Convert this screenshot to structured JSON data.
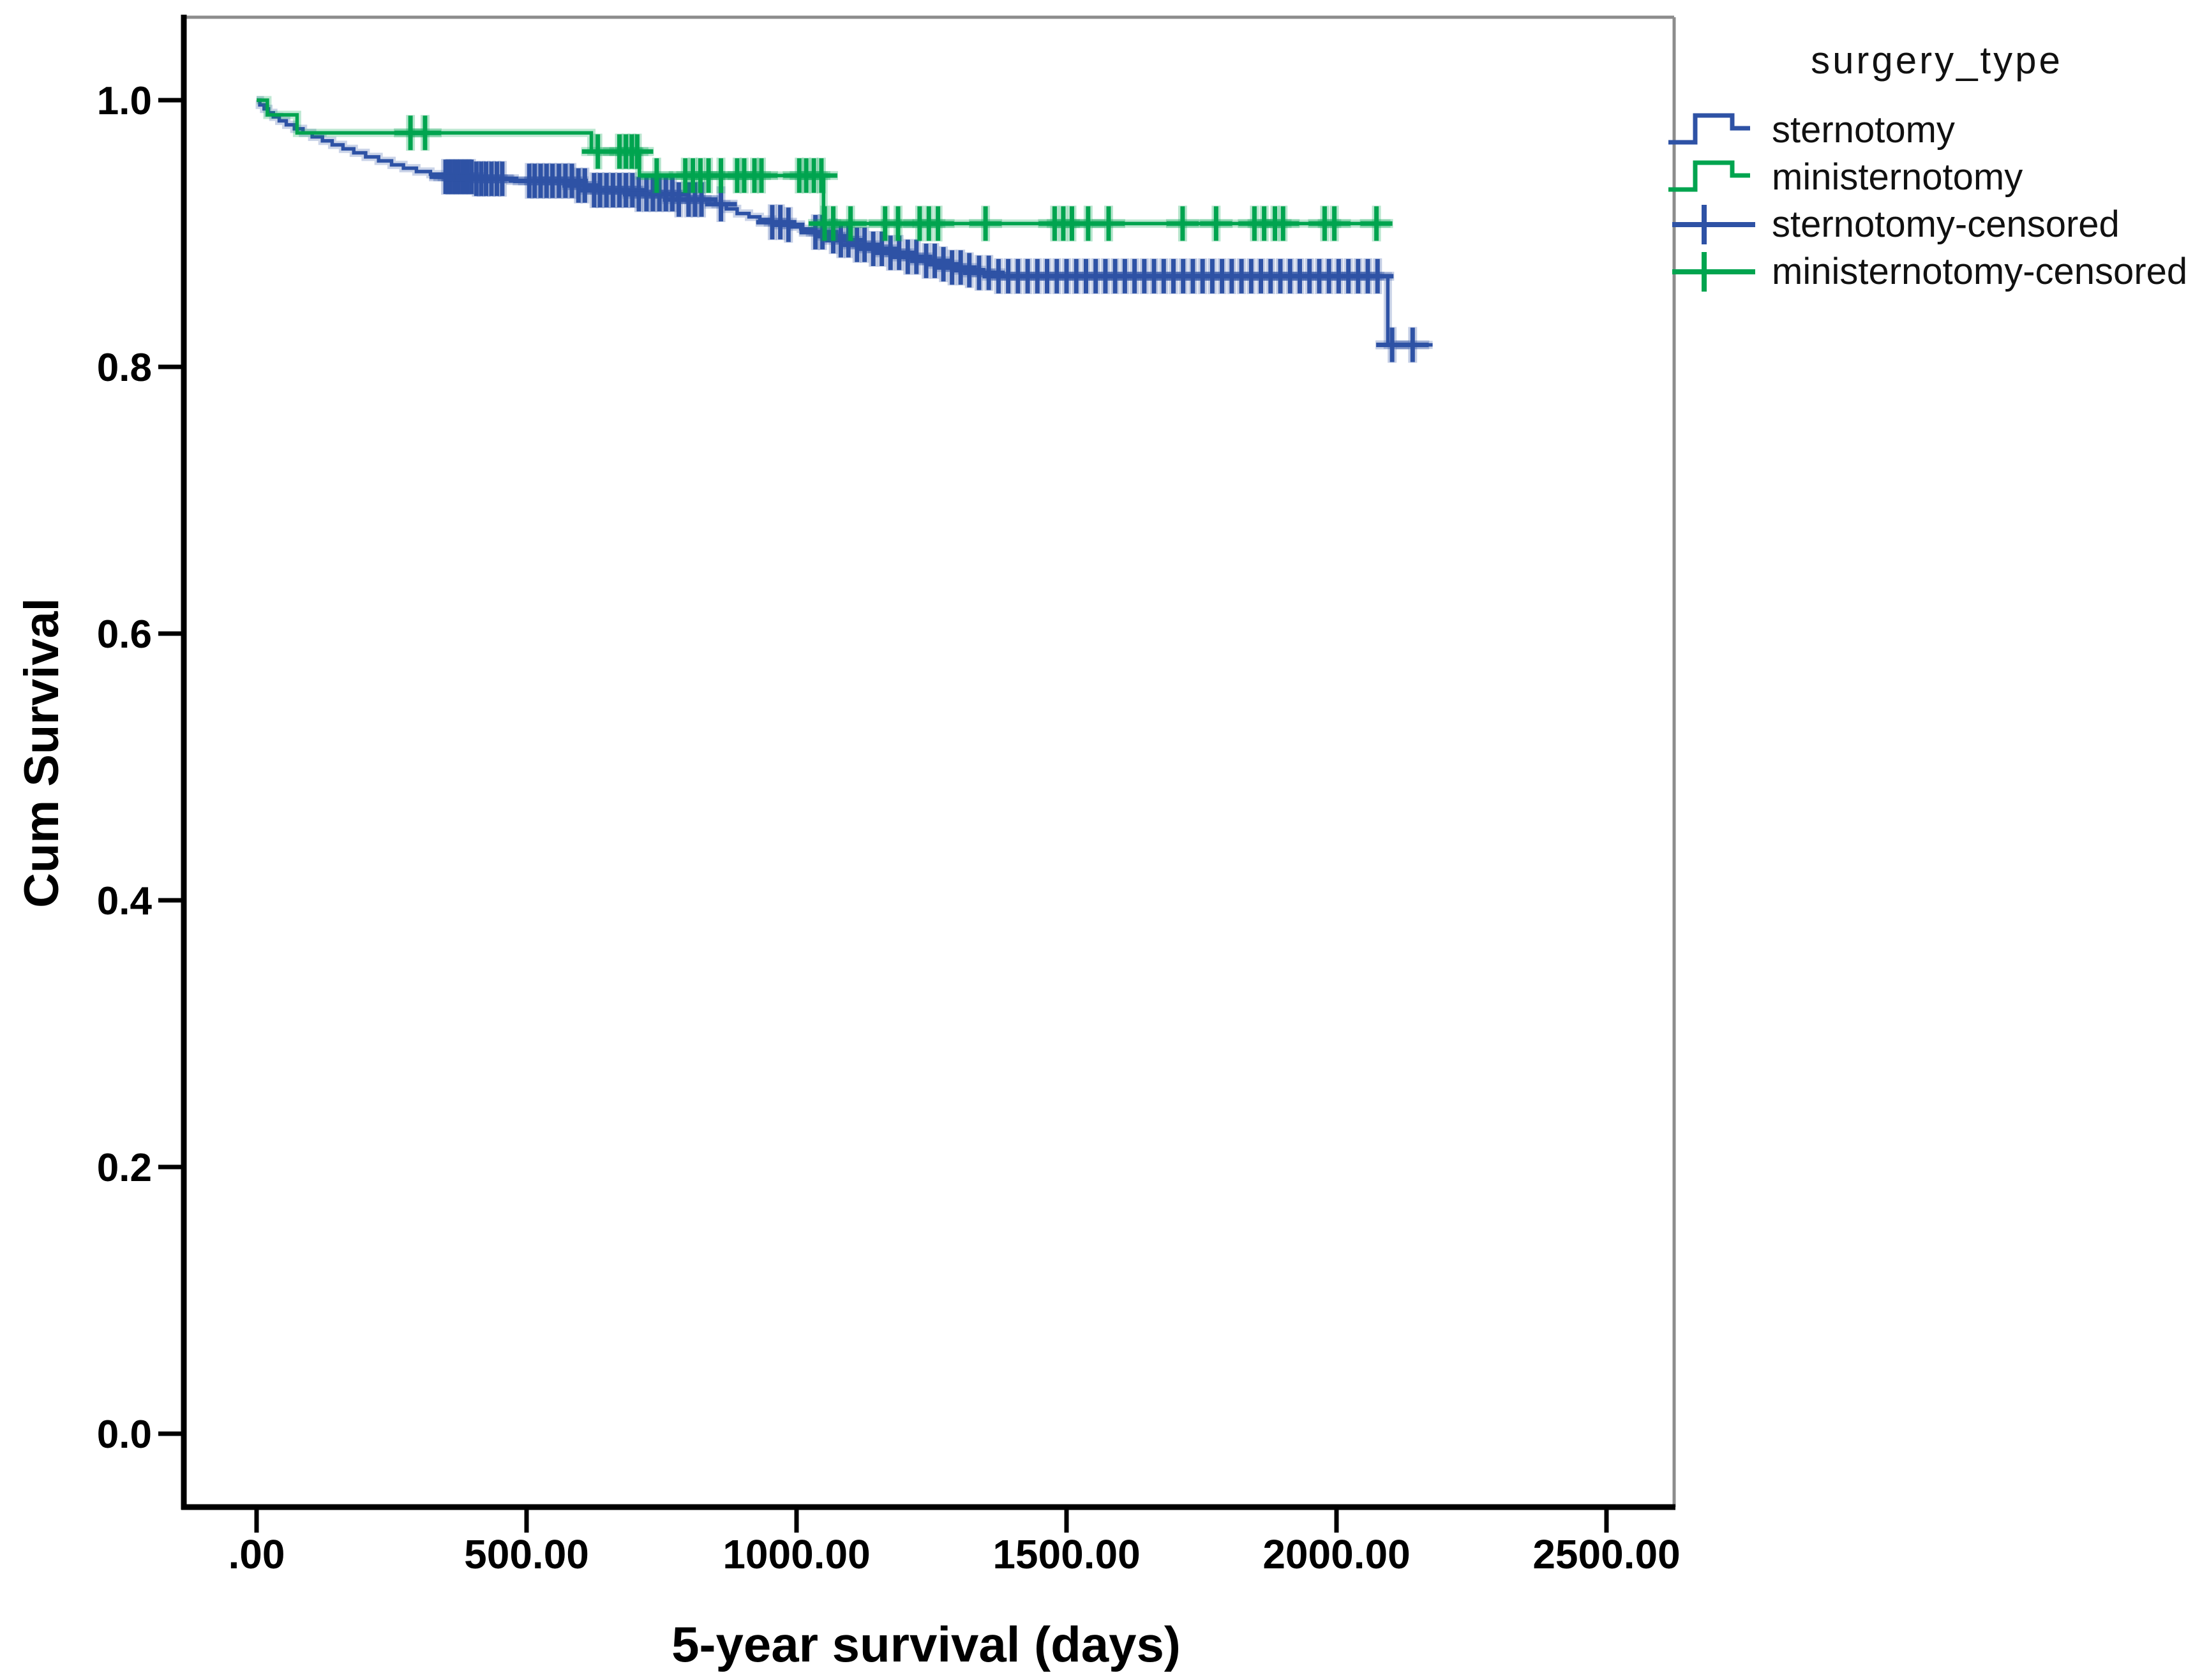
{
  "figure": {
    "y_axis_title": "Cum Survival",
    "x_axis_title": "5-year survival (days)",
    "background_color": "#ffffff",
    "axis_color": "#000000",
    "border_color": "#8c8c8c"
  },
  "legend": {
    "title": "surgery_type",
    "items": [
      {
        "label": "sternotomy",
        "swatch": "step-line",
        "color": "#2E52A5"
      },
      {
        "label": "ministernotomy",
        "swatch": "step-line",
        "color": "#00A44F"
      },
      {
        "label": "sternotomy-censored",
        "swatch": "plus-marker",
        "color": "#2E52A5"
      },
      {
        "label": "ministernotomy-censored",
        "swatch": "plus-marker",
        "color": "#00A44F"
      }
    ]
  },
  "chart_data": {
    "type": "line",
    "subtype": "kaplan-meier-step",
    "title": "",
    "xlabel": "5-year survival (days)",
    "ylabel": "Cum Survival",
    "xlim": [
      -135,
      2630
    ],
    "ylim": [
      -0.055,
      1.062
    ],
    "grid": false,
    "legend_position": "outside-top-right",
    "x_ticks": {
      "values": [
        0,
        500,
        1000,
        1500,
        2000,
        2500
      ],
      "labels": [
        ".00",
        "500.00",
        "1000.00",
        "1500.00",
        "2000.00",
        "2500.00"
      ]
    },
    "y_ticks": {
      "values": [
        1.0,
        0.8,
        0.6,
        0.4,
        0.2,
        0.0
      ],
      "labels": [
        "1.0",
        "0.8",
        "0.6",
        "0.4",
        "0.2",
        "0.0"
      ]
    },
    "series": [
      {
        "name": "sternotomy",
        "color": "#2E52A5",
        "end_day": 2178,
        "steps": [
          [
            0,
            1.0
          ],
          [
            6,
            0.9965
          ],
          [
            14,
            0.9935
          ],
          [
            22,
            0.9905
          ],
          [
            31,
            0.9875
          ],
          [
            42,
            0.9845
          ],
          [
            55,
            0.9815
          ],
          [
            70,
            0.9785
          ],
          [
            86,
            0.9755
          ],
          [
            103,
            0.9725
          ],
          [
            122,
            0.9695
          ],
          [
            140,
            0.9665
          ],
          [
            160,
            0.9635
          ],
          [
            180,
            0.9605
          ],
          [
            202,
            0.9575
          ],
          [
            226,
            0.9545
          ],
          [
            250,
            0.9515
          ],
          [
            272,
            0.949
          ],
          [
            296,
            0.9465
          ],
          [
            322,
            0.9445
          ],
          [
            350,
            0.9425
          ],
          [
            400,
            0.941
          ],
          [
            470,
            0.9395
          ],
          [
            590,
            0.936
          ],
          [
            612,
            0.9325
          ],
          [
            701,
            0.9295
          ],
          [
            780,
            0.9255
          ],
          [
            850,
            0.922
          ],
          [
            870,
            0.9185
          ],
          [
            890,
            0.915
          ],
          [
            912,
            0.9125
          ],
          [
            932,
            0.9105
          ],
          [
            955,
            0.9085
          ],
          [
            975,
            0.9065
          ],
          [
            992,
            0.905
          ],
          [
            1008,
            0.9035
          ],
          [
            1030,
            0.901
          ],
          [
            1055,
            0.898
          ],
          [
            1082,
            0.895
          ],
          [
            1110,
            0.8915
          ],
          [
            1140,
            0.8885
          ],
          [
            1172,
            0.8855
          ],
          [
            1205,
            0.8825
          ],
          [
            1240,
            0.8795
          ],
          [
            1262,
            0.877
          ],
          [
            1284,
            0.8745
          ],
          [
            1306,
            0.8725
          ],
          [
            1330,
            0.8705
          ],
          [
            1359,
            0.868
          ],
          [
            2095,
            0.8165
          ]
        ],
        "censored_days": [
          350,
          358,
          366,
          374,
          382,
          390,
          398,
          407,
          416,
          425,
          435,
          445,
          455,
          505,
          515,
          526,
          537,
          548,
          560,
          572,
          584,
          596,
          608,
          625,
          636,
          648,
          660,
          672,
          684,
          696,
          708,
          722,
          734,
          746,
          758,
          770,
          782,
          800,
          812,
          824,
          860,
          955,
          970,
          985,
          1035,
          1048,
          1068,
          1082,
          1096,
          1112,
          1126,
          1142,
          1158,
          1174,
          1190,
          1206,
          1222,
          1240,
          1256,
          1272,
          1288,
          1304,
          1320,
          1338,
          1356,
          1374,
          1392,
          1410,
          1428,
          1446,
          1464,
          1482,
          1500,
          1518,
          1536,
          1554,
          1572,
          1590,
          1608,
          1626,
          1644,
          1662,
          1680,
          1698,
          1716,
          1734,
          1752,
          1770,
          1788,
          1806,
          1824,
          1842,
          1860,
          1878,
          1896,
          1914,
          1932,
          1950,
          1968,
          1986,
          2004,
          2022,
          2040,
          2058,
          2076,
          2103,
          2141
        ]
      },
      {
        "name": "ministernotomy",
        "color": "#00A44F",
        "end_day": 2100,
        "steps": [
          [
            0,
            1.0
          ],
          [
            20,
            0.989
          ],
          [
            75,
            0.9755
          ],
          [
            620,
            0.9615
          ],
          [
            709,
            0.9435
          ],
          [
            1050,
            0.9075
          ]
        ],
        "censored_days": [
          285,
          312,
          632,
          672,
          684,
          695,
          705,
          741,
          794,
          808,
          822,
          837,
          860,
          890,
          903,
          922,
          935,
          1005,
          1018,
          1032,
          1046,
          1052,
          1068,
          1100,
          1164,
          1188,
          1228,
          1245,
          1262,
          1350,
          1478,
          1494,
          1510,
          1540,
          1578,
          1715,
          1777,
          1848,
          1866,
          1886,
          1901,
          1978,
          1996,
          2074
        ]
      }
    ]
  }
}
